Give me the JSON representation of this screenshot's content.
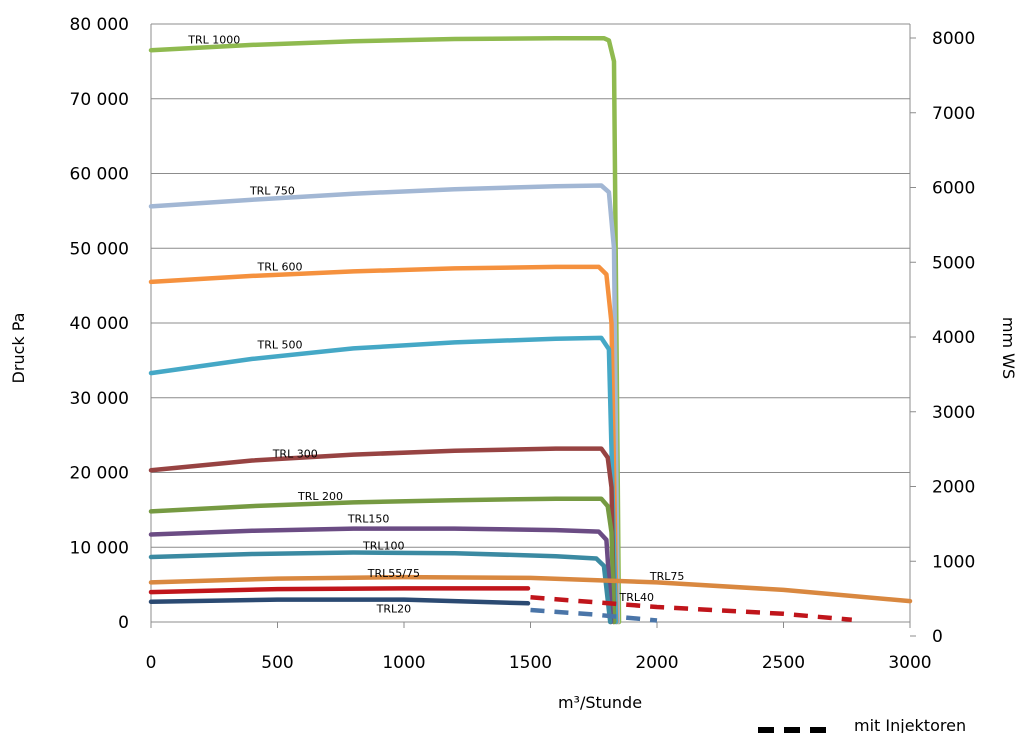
{
  "chart_data": {
    "type": "line",
    "title": "",
    "xlabel": "m³/Stunde",
    "ylabel": "Druck Pa",
    "y2label": "mm WS",
    "xlim": [
      0,
      3000
    ],
    "ylim": [
      0,
      80000
    ],
    "y2lim": [
      0,
      8000
    ],
    "x_ticks": [
      "0",
      "500",
      "1000",
      "1500",
      "2000",
      "2500",
      "3000"
    ],
    "y_ticks": [
      "0",
      "10 000",
      "20 000",
      "30 000",
      "40 000",
      "50 000",
      "60 000",
      "70 000",
      "80 000"
    ],
    "y2_ticks": [
      "0",
      "1000",
      "2000",
      "3000",
      "4000",
      "5000",
      "6000",
      "7000",
      "8000"
    ],
    "grid": "horizontal",
    "legend": {
      "label": "mit Injektoren",
      "style": "dashed",
      "position": "bottom-right"
    },
    "series": [
      {
        "name": "TRL 1000",
        "color": "#8fba4f",
        "dashed": false,
        "points": [
          [
            0,
            76500
          ],
          [
            400,
            77200
          ],
          [
            800,
            77700
          ],
          [
            1200,
            78000
          ],
          [
            1600,
            78100
          ],
          [
            1790,
            78100
          ],
          [
            1810,
            77800
          ],
          [
            1830,
            75000
          ],
          [
            1850,
            0
          ]
        ]
      },
      {
        "name": "TRL 750",
        "color": "#a2b7d4",
        "dashed": false,
        "points": [
          [
            0,
            55600
          ],
          [
            400,
            56500
          ],
          [
            800,
            57300
          ],
          [
            1200,
            57900
          ],
          [
            1600,
            58300
          ],
          [
            1780,
            58400
          ],
          [
            1810,
            57500
          ],
          [
            1830,
            50000
          ],
          [
            1845,
            0
          ]
        ]
      },
      {
        "name": "TRL 600",
        "color": "#f5913e",
        "dashed": false,
        "points": [
          [
            0,
            45500
          ],
          [
            400,
            46300
          ],
          [
            800,
            46900
          ],
          [
            1200,
            47300
          ],
          [
            1600,
            47500
          ],
          [
            1770,
            47500
          ],
          [
            1800,
            46500
          ],
          [
            1820,
            40000
          ],
          [
            1840,
            0
          ]
        ]
      },
      {
        "name": "TRL 500",
        "color": "#45a8c6",
        "dashed": false,
        "points": [
          [
            0,
            33300
          ],
          [
            400,
            35200
          ],
          [
            800,
            36600
          ],
          [
            1200,
            37400
          ],
          [
            1600,
            37900
          ],
          [
            1780,
            38000
          ],
          [
            1810,
            36500
          ],
          [
            1830,
            10000
          ],
          [
            1838,
            0
          ]
        ]
      },
      {
        "name": "TRL 300",
        "color": "#974342",
        "dashed": false,
        "points": [
          [
            0,
            20300
          ],
          [
            400,
            21600
          ],
          [
            800,
            22400
          ],
          [
            1200,
            22900
          ],
          [
            1600,
            23200
          ],
          [
            1780,
            23200
          ],
          [
            1805,
            22000
          ],
          [
            1820,
            18000
          ],
          [
            1830,
            0
          ]
        ]
      },
      {
        "name": "TRL 200",
        "color": "#769a42",
        "dashed": false,
        "points": [
          [
            0,
            14800
          ],
          [
            400,
            15500
          ],
          [
            800,
            16000
          ],
          [
            1200,
            16300
          ],
          [
            1600,
            16500
          ],
          [
            1780,
            16500
          ],
          [
            1805,
            15500
          ],
          [
            1820,
            12000
          ],
          [
            1830,
            0
          ]
        ]
      },
      {
        "name": "TRL150",
        "color": "#6b4c84",
        "dashed": false,
        "points": [
          [
            0,
            11700
          ],
          [
            400,
            12200
          ],
          [
            800,
            12500
          ],
          [
            1200,
            12500
          ],
          [
            1600,
            12300
          ],
          [
            1770,
            12100
          ],
          [
            1800,
            11000
          ],
          [
            1812,
            5000
          ],
          [
            1818,
            0
          ]
        ]
      },
      {
        "name": "TRL100",
        "color": "#3b8aa2",
        "dashed": false,
        "points": [
          [
            0,
            8700
          ],
          [
            400,
            9100
          ],
          [
            800,
            9300
          ],
          [
            1200,
            9200
          ],
          [
            1600,
            8800
          ],
          [
            1760,
            8500
          ],
          [
            1790,
            7500
          ],
          [
            1805,
            3000
          ],
          [
            1815,
            0
          ]
        ]
      },
      {
        "name": "TRL75",
        "color": "#d98840",
        "dashed": false,
        "points": [
          [
            0,
            5300
          ],
          [
            500,
            5800
          ],
          [
            1000,
            6000
          ],
          [
            1500,
            5900
          ],
          [
            2000,
            5300
          ],
          [
            2500,
            4300
          ],
          [
            3000,
            2800
          ]
        ]
      },
      {
        "name": "TRL40",
        "color": "#c0151b",
        "dashed": false,
        "points": [
          [
            0,
            4000
          ],
          [
            500,
            4400
          ],
          [
            1000,
            4500
          ],
          [
            1490,
            4500
          ]
        ]
      },
      {
        "name": "TRL40",
        "color": "#c0151b",
        "dashed": true,
        "points": [
          [
            1500,
            3300
          ],
          [
            2000,
            2000
          ],
          [
            2500,
            1100
          ],
          [
            2770,
            300
          ]
        ]
      },
      {
        "name": "TRL20",
        "color": "#2b4a72",
        "dashed": false,
        "points": [
          [
            0,
            2700
          ],
          [
            500,
            3000
          ],
          [
            1000,
            3000
          ],
          [
            1490,
            2500
          ]
        ]
      },
      {
        "name": "TRL20",
        "color": "#4a75a8",
        "dashed": true,
        "points": [
          [
            1500,
            1600
          ],
          [
            1750,
            1000
          ],
          [
            2000,
            200
          ]
        ]
      }
    ],
    "annotations": [
      {
        "text": "TRL 1000",
        "x": 250,
        "y": 77400
      },
      {
        "text": "TRL 750",
        "x": 480,
        "y": 57200
      },
      {
        "text": "TRL 600",
        "x": 510,
        "y": 47000
      },
      {
        "text": "TRL 500",
        "x": 510,
        "y": 36600
      },
      {
        "text": "TRL 300",
        "x": 570,
        "y": 22000
      },
      {
        "text": "TRL 200",
        "x": 670,
        "y": 16300
      },
      {
        "text": "TRL150",
        "x": 860,
        "y": 13300
      },
      {
        "text": "TRL100",
        "x": 920,
        "y": 9700
      },
      {
        "text": "TRL55/75",
        "x": 960,
        "y": 6000
      },
      {
        "text": "TRL75",
        "x": 2040,
        "y": 5600
      },
      {
        "text": "TRL40",
        "x": 1920,
        "y": 2800
      },
      {
        "text": "TRL20",
        "x": 960,
        "y": 1300
      }
    ]
  }
}
